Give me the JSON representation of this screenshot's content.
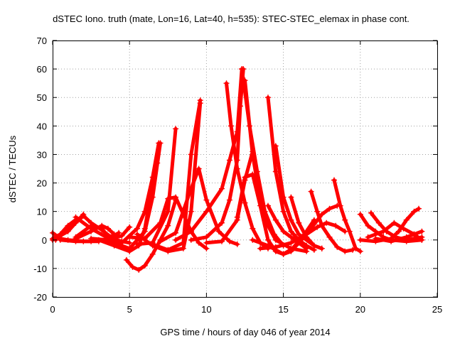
{
  "chart_data": {
    "type": "scatter",
    "title": "dSTEC Iono. truth (mate, Lon=16, Lat=40, h=535): STEC-STEC_elemax in phase cont.",
    "xlabel": "GPS time / hours of day 046 of year 2014",
    "ylabel": "dSTEC  / TECUs",
    "xlim": [
      0,
      25
    ],
    "ylim": [
      -20,
      70
    ],
    "x_ticks": [
      0,
      5,
      10,
      15,
      20,
      25
    ],
    "y_ticks": [
      -20,
      -10,
      0,
      10,
      20,
      30,
      40,
      50,
      60,
      70
    ],
    "grid": true,
    "marker": "plus",
    "color": "#ff0000",
    "series": [
      {
        "points": [
          [
            0.0,
            2.5
          ],
          [
            0.5,
            0.5
          ],
          [
            1.0,
            0.0
          ],
          [
            2.0,
            -0.5
          ],
          [
            3.0,
            -0.5
          ]
        ]
      },
      {
        "points": [
          [
            0.0,
            0.5
          ],
          [
            0.5,
            2.0
          ],
          [
            1.0,
            5.0
          ],
          [
            1.6,
            7.5
          ]
        ]
      },
      {
        "points": [
          [
            0.0,
            0.0
          ],
          [
            1.0,
            3.0
          ],
          [
            2.0,
            9.0
          ]
        ]
      },
      {
        "points": [
          [
            0.2,
            0.0
          ],
          [
            1.5,
            6.0
          ],
          [
            2.0,
            8.5
          ],
          [
            2.5,
            6.0
          ],
          [
            3.2,
            3.5
          ],
          [
            3.8,
            1.0
          ]
        ]
      },
      {
        "points": [
          [
            1.5,
            0.5
          ],
          [
            2.5,
            3.0
          ],
          [
            3.2,
            5.0
          ],
          [
            3.6,
            4.0
          ],
          [
            4.0,
            2.0
          ]
        ]
      },
      {
        "points": [
          [
            1.5,
            1.0
          ],
          [
            2.5,
            5.0
          ],
          [
            3.2,
            4.0
          ],
          [
            3.8,
            0.0
          ],
          [
            4.2,
            -1.0
          ]
        ]
      },
      {
        "points": [
          [
            0.5,
            0.0
          ],
          [
            1.5,
            -0.5
          ],
          [
            2.5,
            -0.5
          ],
          [
            3.5,
            0.0
          ],
          [
            4.3,
            2.5
          ]
        ]
      },
      {
        "points": [
          [
            1.5,
            8.0
          ],
          [
            2.5,
            4.0
          ],
          [
            3.5,
            1.0
          ],
          [
            4.5,
            -0.5
          ],
          [
            5.0,
            -1.0
          ]
        ]
      },
      {
        "points": [
          [
            2.5,
            0.5
          ],
          [
            3.5,
            0.0
          ],
          [
            4.5,
            1.5
          ],
          [
            5.0,
            4.5
          ]
        ]
      },
      {
        "points": [
          [
            3.0,
            0.0
          ],
          [
            4.0,
            -2.0
          ],
          [
            5.0,
            -4.0
          ],
          [
            5.6,
            -2.0
          ],
          [
            6.0,
            4.0
          ],
          [
            6.5,
            20.0
          ],
          [
            6.8,
            27.0
          ]
        ]
      },
      {
        "points": [
          [
            3.5,
            -0.5
          ],
          [
            4.5,
            -1.0
          ],
          [
            5.5,
            4.0
          ],
          [
            6.0,
            10.0
          ],
          [
            6.5,
            22.0
          ],
          [
            6.9,
            34.0
          ]
        ]
      },
      {
        "points": [
          [
            4.0,
            -1.0
          ],
          [
            5.0,
            -3.0
          ],
          [
            6.0,
            3.0
          ],
          [
            6.5,
            15.0
          ],
          [
            7.0,
            34.0
          ]
        ]
      },
      {
        "points": [
          [
            4.8,
            -7.0
          ],
          [
            5.2,
            -9.5
          ],
          [
            5.6,
            -10.5
          ],
          [
            6.0,
            -9.0
          ],
          [
            6.5,
            -5.0
          ],
          [
            7.0,
            0.0
          ],
          [
            7.5,
            5.0
          ],
          [
            8.0,
            14.0
          ]
        ]
      },
      {
        "points": [
          [
            5.0,
            1.0
          ],
          [
            6.0,
            0.5
          ],
          [
            7.0,
            6.0
          ],
          [
            7.5,
            14.5
          ],
          [
            8.0,
            15.0
          ],
          [
            8.5,
            9.0
          ],
          [
            9.0,
            3.0
          ],
          [
            9.5,
            -1.0
          ],
          [
            10.0,
            -3.0
          ]
        ]
      },
      {
        "points": [
          [
            5.5,
            -1.5
          ],
          [
            6.5,
            -1.0
          ],
          [
            7.5,
            10.0
          ],
          [
            8.0,
            39.0
          ]
        ]
      },
      {
        "points": [
          [
            5.5,
            2.0
          ],
          [
            6.5,
            -2.0
          ],
          [
            7.5,
            -4.0
          ],
          [
            8.5,
            -3.0
          ],
          [
            9.0,
            10.0
          ],
          [
            9.6,
            48.0
          ]
        ]
      },
      {
        "points": [
          [
            6.5,
            -1.5
          ],
          [
            7.5,
            -3.5
          ],
          [
            8.5,
            -1.0
          ],
          [
            9.0,
            30.0
          ],
          [
            9.6,
            49.0
          ]
        ]
      },
      {
        "points": [
          [
            7.0,
            -0.5
          ],
          [
            8.0,
            2.5
          ],
          [
            9.0,
            18.0
          ],
          [
            9.5,
            25.0
          ],
          [
            10.0,
            14.0
          ],
          [
            10.8,
            3.0
          ],
          [
            11.5,
            -0.5
          ],
          [
            12.0,
            -1.5
          ]
        ]
      },
      {
        "points": [
          [
            8.0,
            0.0
          ],
          [
            9.0,
            3.0
          ],
          [
            10.0,
            10.0
          ],
          [
            11.0,
            18.0
          ],
          [
            11.5,
            28.0
          ],
          [
            12.0,
            38.0
          ],
          [
            12.3,
            60.0
          ]
        ]
      },
      {
        "points": [
          [
            9.0,
            0.0
          ],
          [
            10.0,
            1.0
          ],
          [
            11.0,
            6.0
          ],
          [
            11.5,
            14.0
          ],
          [
            12.0,
            28.0
          ],
          [
            12.2,
            47.0
          ],
          [
            12.4,
            60.0
          ]
        ]
      },
      {
        "points": [
          [
            10.0,
            -1.0
          ],
          [
            11.0,
            -0.5
          ],
          [
            12.0,
            7.0
          ],
          [
            12.5,
            21.0
          ],
          [
            13.0,
            31.0
          ]
        ]
      },
      {
        "points": [
          [
            11.3,
            55.0
          ],
          [
            11.6,
            40.0
          ],
          [
            12.0,
            25.0
          ],
          [
            12.5,
            13.0
          ],
          [
            13.0,
            4.0
          ],
          [
            13.5,
            -1.0
          ],
          [
            14.0,
            -3.0
          ]
        ]
      },
      {
        "points": [
          [
            12.3,
            60.0
          ],
          [
            12.8,
            40.0
          ],
          [
            13.3,
            24.0
          ],
          [
            13.8,
            10.0
          ],
          [
            14.4,
            2.0
          ],
          [
            15.0,
            -2.0
          ]
        ]
      },
      {
        "points": [
          [
            12.5,
            56.0
          ],
          [
            13.0,
            30.0
          ],
          [
            13.5,
            14.0
          ],
          [
            14.0,
            5.0
          ],
          [
            14.5,
            0.0
          ],
          [
            15.5,
            -3.0
          ],
          [
            16.5,
            -4.0
          ]
        ]
      },
      {
        "points": [
          [
            12.0,
            8.0
          ],
          [
            12.5,
            22.0
          ],
          [
            13.0,
            23.0
          ],
          [
            13.5,
            12.0
          ],
          [
            14.0,
            0.0
          ],
          [
            14.5,
            -4.0
          ],
          [
            15.0,
            -5.0
          ],
          [
            15.6,
            -3.0
          ],
          [
            16.5,
            3.0
          ],
          [
            17.0,
            7.0
          ]
        ]
      },
      {
        "points": [
          [
            14.0,
            50.0
          ],
          [
            14.5,
            24.0
          ],
          [
            15.0,
            10.0
          ],
          [
            15.5,
            3.0
          ],
          [
            16.0,
            0.0
          ],
          [
            16.5,
            -2.0
          ],
          [
            17.0,
            -3.5
          ]
        ]
      },
      {
        "points": [
          [
            14.5,
            33.0
          ],
          [
            15.0,
            15.0
          ],
          [
            15.5,
            7.0
          ],
          [
            16.0,
            2.0
          ],
          [
            17.0,
            -2.0
          ],
          [
            17.5,
            -3.0
          ]
        ]
      },
      {
        "points": [
          [
            13.0,
            0.0
          ],
          [
            14.0,
            -2.0
          ],
          [
            15.0,
            -5.0
          ],
          [
            15.5,
            -4.0
          ],
          [
            16.5,
            2.0
          ],
          [
            17.5,
            9.0
          ],
          [
            18.0,
            11.0
          ],
          [
            18.5,
            12.0
          ]
        ]
      },
      {
        "points": [
          [
            13.5,
            -3.0
          ],
          [
            14.5,
            -2.5
          ],
          [
            15.5,
            -1.0
          ],
          [
            16.5,
            2.0
          ],
          [
            17.2,
            4.5
          ],
          [
            17.8,
            6.0
          ],
          [
            18.4,
            5.0
          ],
          [
            19.0,
            3.0
          ]
        ]
      },
      {
        "points": [
          [
            14.0,
            12.0
          ],
          [
            14.5,
            7.0
          ],
          [
            15.0,
            3.0
          ],
          [
            15.5,
            1.0
          ],
          [
            16.0,
            -1.0
          ],
          [
            16.5,
            -3.0
          ]
        ]
      },
      {
        "points": [
          [
            15.5,
            15.0
          ],
          [
            16.0,
            6.0
          ],
          [
            16.5,
            1.0
          ],
          [
            17.0,
            -2.0
          ],
          [
            17.5,
            -3.0
          ]
        ]
      },
      {
        "points": [
          [
            16.8,
            17.0
          ],
          [
            17.2,
            10.0
          ],
          [
            17.5,
            5.0
          ],
          [
            18.0,
            1.0
          ],
          [
            18.5,
            -2.5
          ],
          [
            19.0,
            -4.0
          ],
          [
            19.5,
            -3.5
          ]
        ]
      },
      {
        "points": [
          [
            18.3,
            21.0
          ],
          [
            18.7,
            12.0
          ],
          [
            19.0,
            7.0
          ],
          [
            19.3,
            3.0
          ],
          [
            19.7,
            -3.0
          ],
          [
            20.0,
            -4.0
          ]
        ]
      },
      {
        "points": [
          [
            20.0,
            9.0
          ],
          [
            20.5,
            5.0
          ],
          [
            21.0,
            3.0
          ],
          [
            21.5,
            1.0
          ],
          [
            22.0,
            0.0
          ],
          [
            23.0,
            -0.5
          ],
          [
            24.0,
            0.0
          ]
        ]
      },
      {
        "points": [
          [
            20.7,
            9.5
          ],
          [
            21.2,
            6.0
          ],
          [
            21.7,
            3.0
          ],
          [
            22.3,
            1.0
          ],
          [
            23.0,
            0.0
          ],
          [
            24.0,
            1.0
          ]
        ]
      },
      {
        "points": [
          [
            20.0,
            0.0
          ],
          [
            21.0,
            -0.5
          ],
          [
            22.0,
            0.5
          ],
          [
            22.5,
            3.0
          ],
          [
            23.0,
            7.0
          ],
          [
            23.5,
            10.0
          ],
          [
            23.8,
            11.0
          ]
        ]
      },
      {
        "points": [
          [
            20.5,
            1.0
          ],
          [
            21.5,
            3.0
          ],
          [
            22.2,
            6.0
          ],
          [
            22.8,
            4.0
          ],
          [
            23.5,
            2.0
          ],
          [
            24.0,
            0.0
          ]
        ]
      },
      {
        "points": [
          [
            21.0,
            0.5
          ],
          [
            22.0,
            -0.5
          ],
          [
            23.0,
            1.0
          ],
          [
            23.5,
            2.0
          ],
          [
            24.0,
            3.0
          ]
        ]
      }
    ]
  }
}
